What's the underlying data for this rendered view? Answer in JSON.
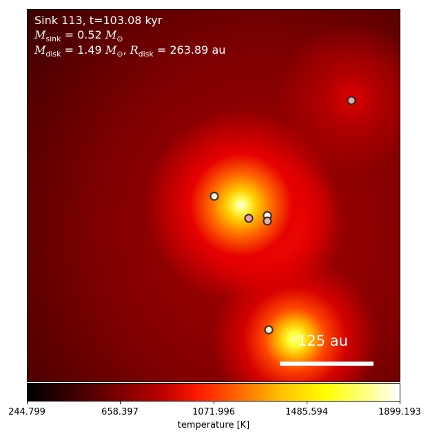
{
  "map": {
    "title_line": "Sink 113, t=103.08 kyr",
    "sink_mass_symbol": "M",
    "sink_mass_sub": "sink",
    "sink_mass_value": " = 0.52 ",
    "disk_mass_symbol": "M",
    "disk_mass_sub": "disk",
    "disk_mass_value": " = 1.49 ",
    "disk_radius_symbol": "R",
    "disk_radius_sub": "disk",
    "disk_radius_value": " = 263.89 au",
    "solar_symbol": "M",
    "solar_sub": "⊙",
    "scalebar_label": "125 au"
  },
  "sinks": [
    {
      "fill": "#d9b0b0"
    },
    {
      "fill": "#f5f2e6"
    },
    {
      "fill": "#f0a0a0"
    },
    {
      "fill": "#ffffff"
    },
    {
      "fill": "#e8b0a0"
    },
    {
      "fill": "#f7f3d0"
    }
  ],
  "colorbar": {
    "label": "temperature [K]",
    "ticks": [
      "244.799",
      "658.397",
      "1071.996",
      "1485.594",
      "1899.193"
    ],
    "colormap": "hot"
  }
}
